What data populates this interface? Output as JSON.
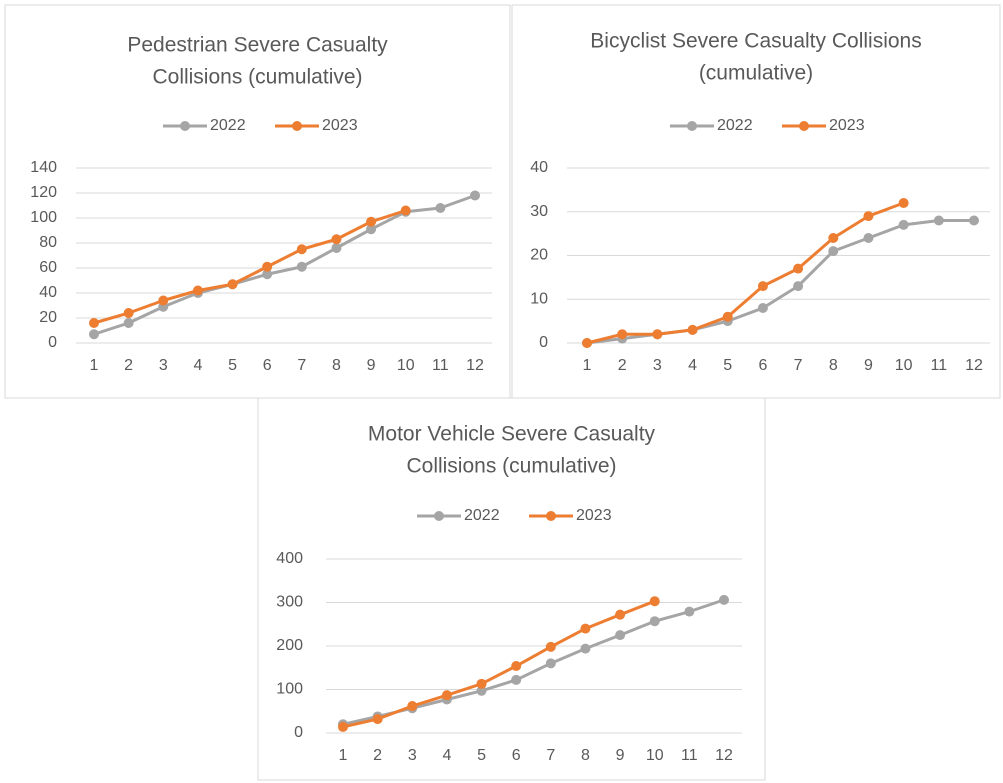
{
  "chart_data": [
    {
      "type": "line",
      "title": [
        "Pedestrian Severe Casualty",
        "Collisions (cumulative)"
      ],
      "categories": [
        1,
        2,
        3,
        4,
        5,
        6,
        7,
        8,
        9,
        10,
        11,
        12
      ],
      "series": [
        {
          "name": "2022",
          "color": "#a5a5a5",
          "values": [
            7,
            16,
            29,
            40,
            47,
            55,
            61,
            76,
            91,
            105,
            108,
            118
          ]
        },
        {
          "name": "2023",
          "color": "#ed7d31",
          "values": [
            16,
            24,
            34,
            42,
            47,
            61,
            75,
            83,
            97,
            106,
            null,
            null
          ]
        }
      ],
      "ylim": [
        0,
        140
      ],
      "yticks": [
        0,
        20,
        40,
        60,
        80,
        100,
        120,
        140
      ],
      "grid": true,
      "legend": "top"
    },
    {
      "type": "line",
      "title": [
        "Bicyclist Severe Casualty Collisions",
        "(cumulative)"
      ],
      "categories": [
        1,
        2,
        3,
        4,
        5,
        6,
        7,
        8,
        9,
        10,
        11,
        12
      ],
      "series": [
        {
          "name": "2022",
          "color": "#a5a5a5",
          "values": [
            0,
            1,
            2,
            3,
            5,
            8,
            13,
            21,
            24,
            27,
            28,
            28
          ]
        },
        {
          "name": "2023",
          "color": "#ed7d31",
          "values": [
            0,
            2,
            2,
            3,
            6,
            13,
            17,
            24,
            29,
            32,
            null,
            null
          ]
        }
      ],
      "ylim": [
        0,
        40
      ],
      "yticks": [
        0,
        10,
        20,
        30,
        40
      ],
      "grid": true,
      "legend": "top"
    },
    {
      "type": "line",
      "title": [
        "Motor Vehicle Severe Casualty",
        "Collisions (cumulative)"
      ],
      "categories": [
        1,
        2,
        3,
        4,
        5,
        6,
        7,
        8,
        9,
        10,
        11,
        12
      ],
      "series": [
        {
          "name": "2022",
          "color": "#a5a5a5",
          "values": [
            20,
            38,
            57,
            77,
            97,
            122,
            160,
            194,
            225,
            257,
            279,
            306
          ]
        },
        {
          "name": "2023",
          "color": "#ed7d31",
          "values": [
            14,
            32,
            62,
            87,
            113,
            154,
            198,
            240,
            272,
            303,
            null,
            null
          ]
        }
      ],
      "ylim": [
        0,
        400
      ],
      "yticks": [
        0,
        100,
        200,
        300,
        400
      ],
      "grid": true,
      "legend": "top"
    }
  ]
}
